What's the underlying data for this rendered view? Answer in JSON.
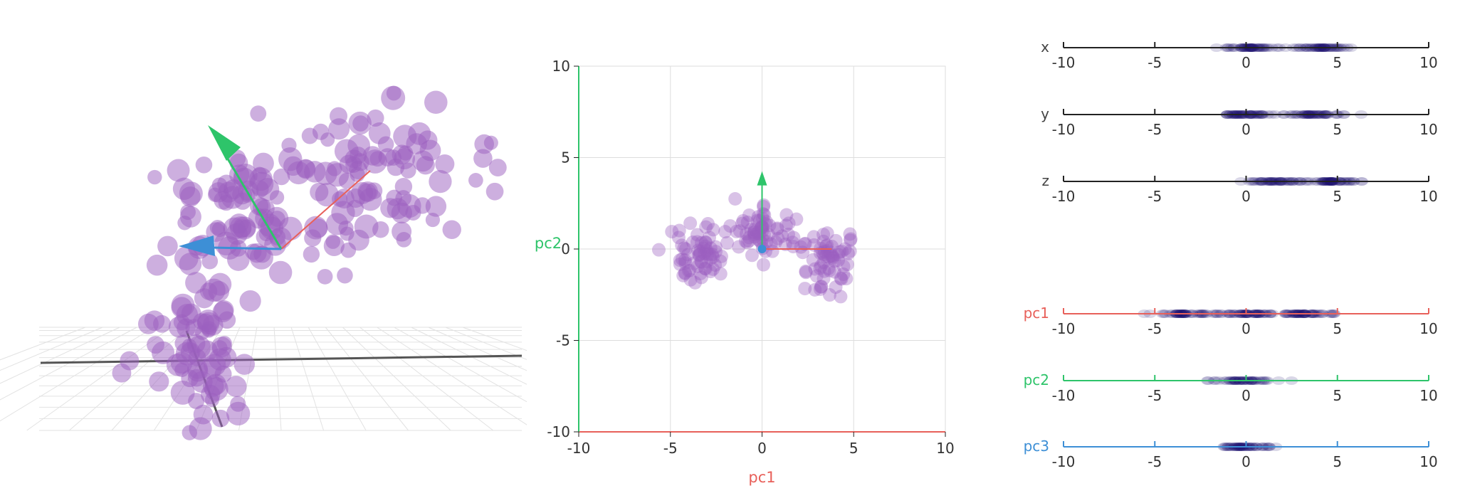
{
  "colors": {
    "pc1": "#e8605a",
    "pc2": "#2ec46a",
    "pc3": "#3d8fd6",
    "point": "#9b5fc0",
    "density": "#1c1070",
    "axis": "#222222",
    "grid": "#dddddd"
  },
  "chart_data": [
    {
      "id": "3d-view",
      "type": "scatter",
      "title": "",
      "note": "3D perspective scatter of the same point cloud with principal component arrows",
      "arrows": [
        "pc1",
        "pc2",
        "pc3"
      ]
    },
    {
      "id": "pc-projection",
      "type": "scatter",
      "title": "",
      "xlabel": "pc1",
      "ylabel": "pc2",
      "xlim": [
        -10,
        10
      ],
      "ylim": [
        -10,
        10
      ],
      "xticks": [
        -10,
        -5,
        0,
        5,
        10
      ],
      "yticks": [
        -10,
        -5,
        0,
        5,
        10
      ],
      "grid": true,
      "clusters": [
        {
          "center": [
            -3.4,
            -0.4
          ],
          "spread": [
            1.2,
            0.9
          ]
        },
        {
          "center": [
            0.0,
            0.9
          ],
          "spread": [
            1.1,
            0.8
          ]
        },
        {
          "center": [
            3.5,
            -0.6
          ],
          "spread": [
            1.1,
            1.1
          ]
        }
      ],
      "arrows": [
        {
          "name": "pc1",
          "dx": 3.8,
          "dy": 0
        },
        {
          "name": "pc2",
          "dx": 0,
          "dy": 4.1
        }
      ]
    },
    {
      "id": "marginals",
      "type": "scatter",
      "title": "",
      "xlim": [
        -10,
        10
      ],
      "xticks": [
        -10,
        -5,
        0,
        5,
        10
      ],
      "strips": [
        {
          "label": "x",
          "color_key": "axis",
          "ranges": [
            [
              -1.5,
              2.2
            ],
            [
              2.5,
              5.6
            ]
          ]
        },
        {
          "label": "y",
          "color_key": "axis",
          "ranges": [
            [
              -1.6,
              2.0
            ],
            [
              2.0,
              5.5
            ]
          ]
        },
        {
          "label": "z",
          "color_key": "axis",
          "ranges": [
            [
              0.0,
              3.5
            ],
            [
              3.5,
              6.3
            ]
          ]
        },
        {
          "label": "pc1",
          "color_key": "pc1",
          "ranges": [
            [
              -5.0,
              -1.6
            ],
            [
              -1.6,
              1.8
            ],
            [
              1.8,
              5.0
            ]
          ]
        },
        {
          "label": "pc2",
          "color_key": "pc2",
          "ranges": [
            [
              -2.3,
              2.0
            ]
          ]
        },
        {
          "label": "pc3",
          "color_key": "pc3",
          "ranges": [
            [
              -1.8,
              1.8
            ]
          ]
        }
      ]
    }
  ]
}
